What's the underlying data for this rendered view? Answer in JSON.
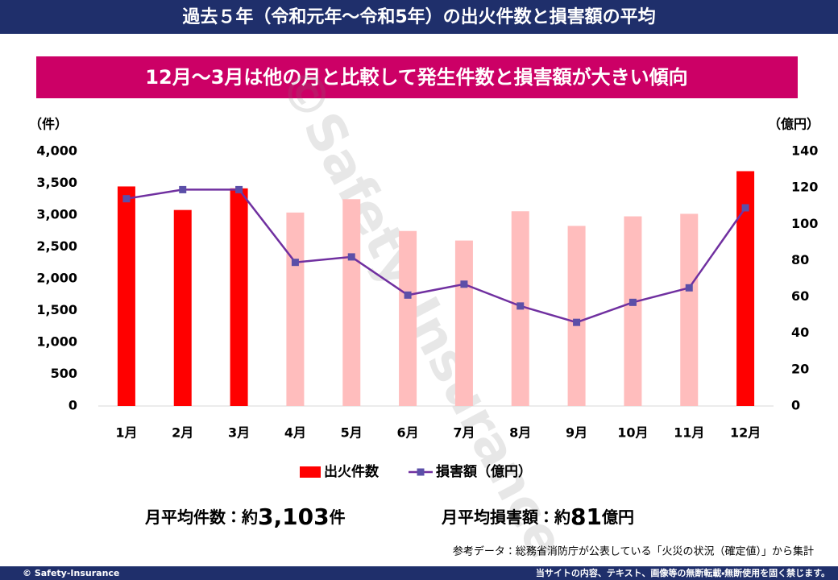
{
  "header": {
    "title": "過去５年（令和元年～令和5年）の出火件数と損害額の平均"
  },
  "chart_data": {
    "type": "bar",
    "subtitle": "12月～3月は他の月と比較して発生件数と損害額が大きい傾向",
    "y_label": "（件）",
    "y2_label": "（億円）",
    "categories": [
      "1月",
      "2月",
      "3月",
      "4月",
      "5月",
      "6月",
      "7月",
      "8月",
      "9月",
      "10月",
      "11月",
      "12月"
    ],
    "series": [
      {
        "name": "出火件数",
        "color": "#ff0000",
        "colors": [
          "#ff0000",
          "#ff0000",
          "#ff0000",
          "#ffbdbd",
          "#ffbdbd",
          "#ffbdbd",
          "#ffbdbd",
          "#ffbdbd",
          "#ffbdbd",
          "#ffbdbd",
          "#ffbdbd",
          "#ff0000"
        ],
        "values": [
          3450,
          3080,
          3420,
          3040,
          3250,
          2750,
          2600,
          3060,
          2830,
          2980,
          3020,
          3690
        ]
      },
      {
        "name": "損害額（億円）",
        "type": "line",
        "axis": "y2",
        "color": "#7030a0",
        "marker_color": "#5b4fa8",
        "values": [
          114,
          119,
          119,
          79,
          82,
          61,
          67,
          55,
          46,
          57,
          65,
          109
        ]
      }
    ],
    "ylim": [
      0,
      4000
    ],
    "yticks": [
      0,
      500,
      {
        "value": 1000,
        "label": "1,000"
      },
      {
        "value": 1500,
        "label": "1,500"
      },
      {
        "value": 2000,
        "label": "2,000"
      },
      {
        "value": 2500,
        "label": "2,500"
      },
      {
        "value": 3000,
        "label": "3,000"
      },
      {
        "value": 3500,
        "label": "3,500"
      },
      {
        "value": 4000,
        "label": "4,000"
      }
    ],
    "y2lim": [
      0,
      140
    ],
    "y2ticks": [
      0,
      20,
      40,
      60,
      80,
      100,
      120,
      140
    ],
    "grid": false
  },
  "summary": [
    {
      "label": "月平均件数：約",
      "value": "3,103",
      "unit": "件"
    },
    {
      "label": "月平均損害額：約",
      "value": "81",
      "unit": "億円"
    }
  ],
  "source": "参考データ：総務省消防庁が公表している「火災の状況（確定値）」から集計",
  "watermark": "©Safety-Insurance",
  "footer": {
    "left": "© Safety-Insurance",
    "right": "当サイトの内容、テキスト、画像等の無断転載・無断使用を固く禁じます。"
  }
}
